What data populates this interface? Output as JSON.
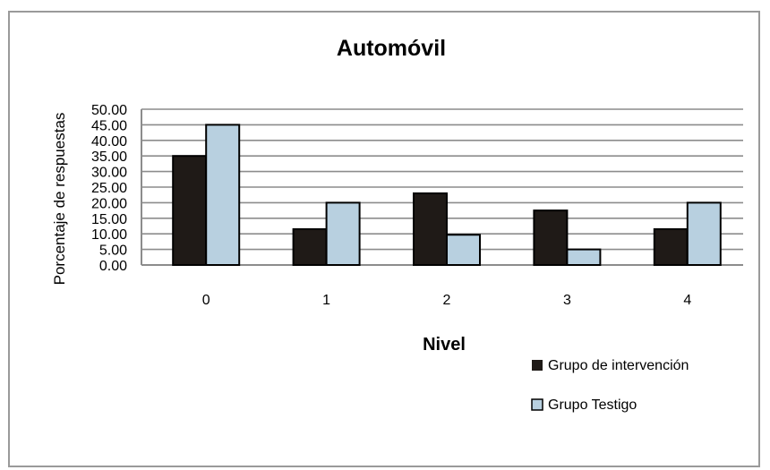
{
  "chart_data": {
    "type": "bar",
    "title": "Automóvil",
    "xlabel": "Nivel",
    "ylabel": "Porcentaje de respuestas",
    "categories": [
      "0",
      "1",
      "2",
      "3",
      "4"
    ],
    "yticks": [
      "0.00",
      "5.00",
      "10.00",
      "15.00",
      "20.00",
      "25.00",
      "30.00",
      "35.00",
      "40.00",
      "45.00",
      "50.00"
    ],
    "ylim": [
      0,
      50
    ],
    "grid": true,
    "legend_position": "bottom-right",
    "series": [
      {
        "name": "Grupo de intervención",
        "color": "#1f1a17",
        "values": [
          35,
          11.5,
          23,
          17.5,
          11.5
        ]
      },
      {
        "name": "Grupo Testigo",
        "color": "#b8d0e0",
        "values": [
          45,
          20,
          9.7,
          5,
          20
        ]
      }
    ]
  }
}
